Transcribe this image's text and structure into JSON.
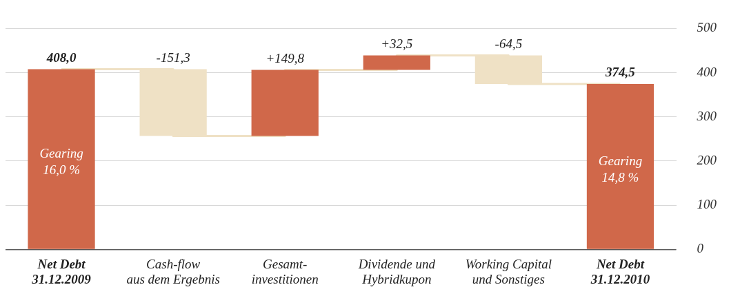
{
  "chart_data": {
    "type": "bar",
    "categories": [
      "Net Debt\n31.12.2009",
      "Cash-flow\naus dem Ergebnis",
      "Gesamt-\ninvestitionen",
      "Dividende und\nHybridkupon",
      "Working Capital\nund Sonstiges",
      "Net Debt\n31.12.2010"
    ],
    "series": [
      {
        "values": [
          408.0,
          -151.3,
          149.8,
          32.5,
          -64.5,
          374.5
        ],
        "base": [
          0,
          408.0,
          256.7,
          406.5,
          439.0,
          0
        ],
        "colors": [
          "#d0684a",
          "#efe1c5",
          "#d0684a",
          "#d0684a",
          "#efe1c5",
          "#d0684a"
        ],
        "value_labels": [
          "408,0",
          "-151,3",
          "+149,8",
          "+32,5",
          "-64,5",
          "374,5"
        ]
      },
      {
        "type": "step",
        "color": "#efe1c5",
        "values": [
          408.0,
          256.7,
          406.5,
          439.0,
          374.5,
          374.5
        ]
      }
    ],
    "annotations": [
      "Gearing\n16,0 %",
      "Gearing\n14,8 %"
    ],
    "ylim": [
      0,
      500
    ],
    "yticks": [
      0,
      100,
      200,
      300,
      400,
      500
    ],
    "grid": "y",
    "legend": false
  }
}
